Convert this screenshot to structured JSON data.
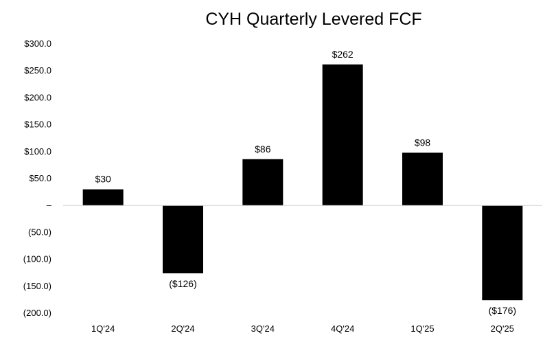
{
  "chart_data": {
    "type": "bar",
    "title": "CYH Quarterly Levered FCF",
    "xlabel": "",
    "ylabel": "",
    "categories": [
      "1Q'24",
      "2Q'24",
      "3Q'24",
      "4Q'24",
      "1Q'25",
      "2Q'25"
    ],
    "values": [
      30,
      -126,
      86,
      262,
      98,
      -176
    ],
    "data_labels": [
      "$30",
      "($126)",
      "$86",
      "$262",
      "$98",
      "($176)"
    ],
    "ylim": [
      -200,
      300
    ],
    "yticks": [
      300,
      250,
      200,
      150,
      100,
      50,
      0,
      -50,
      -100,
      -150,
      -200
    ],
    "ytick_labels": [
      "$300.0",
      "$250.0",
      "$200.0",
      "$150.0",
      "$100.0",
      "$50.0",
      "–",
      "(50.0)",
      "(100.0)",
      "(150.0)",
      "(200.0)"
    ],
    "grid": false,
    "legend": "none",
    "bar_color": "#000000",
    "zero_line_color": "#d0d0d0"
  }
}
